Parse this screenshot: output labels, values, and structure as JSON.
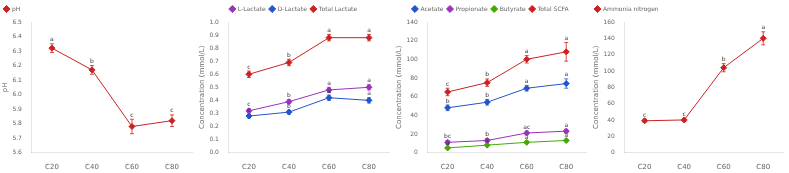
{
  "chart_data": [
    {
      "type": "line",
      "categories": [
        "C20",
        "C40",
        "C60",
        "C80"
      ],
      "series": [
        {
          "name": "pH",
          "color": "#cc2222",
          "values": [
            6.32,
            6.17,
            5.78,
            5.82
          ],
          "errors": [
            0.03,
            0.03,
            0.05,
            0.04
          ],
          "annotations": [
            "a",
            "b",
            "c",
            "c"
          ]
        }
      ],
      "ylabel": "pH",
      "ylim": [
        5.6,
        6.5
      ],
      "yticks": [
        5.6,
        5.7,
        5.8,
        5.9,
        {
          "value": 6.0,
          "label": "6.0"
        },
        6.1,
        6.2,
        6.3,
        6.4,
        6.5
      ],
      "legend": "upper left",
      "grid": false,
      "marker": "diamond"
    },
    {
      "type": "line",
      "categories": [
        "C20",
        "C40",
        "C60",
        "C80"
      ],
      "series": [
        {
          "name": "L-Lactate",
          "color": "#9933bb",
          "values": [
            0.32,
            0.39,
            0.48,
            0.5
          ],
          "errors": [
            0.015,
            0.015,
            0.02,
            0.02
          ],
          "annotations": [
            "c",
            "b",
            "a",
            "a"
          ]
        },
        {
          "name": "D-Lactate",
          "color": "#2255cc",
          "values": [
            0.28,
            0.31,
            0.42,
            0.4
          ],
          "errors": [
            0.015,
            0.015,
            0.02,
            0.02
          ],
          "annotations": [
            "c",
            "b",
            "a",
            "a"
          ]
        },
        {
          "name": "Total Lactate",
          "color": "#cc2222",
          "values": [
            0.6,
            0.69,
            0.88,
            0.88
          ],
          "errors": [
            0.025,
            0.025,
            0.025,
            0.025
          ],
          "annotations": [
            "c",
            "b",
            "a",
            "a"
          ]
        }
      ],
      "ylabel": "Concentration (mmol/L)",
      "ylim": [
        0,
        1.0
      ],
      "yticks": [
        {
          "value": 0,
          "label": "0.0"
        },
        0.1,
        0.2,
        0.3,
        0.4,
        0.5,
        0.6,
        0.7,
        0.8,
        0.9,
        {
          "value": 1.0,
          "label": "1.0"
        }
      ],
      "legend": "upper center",
      "grid": false,
      "marker": "diamond"
    },
    {
      "type": "line",
      "categories": [
        "C20",
        "C40",
        "C60",
        "C80"
      ],
      "series": [
        {
          "name": "Acetate",
          "color": "#2255cc",
          "values": [
            48,
            54,
            69,
            74
          ],
          "errors": [
            3,
            3,
            3,
            5
          ],
          "annotations": [
            "b",
            "b",
            "a",
            "a"
          ]
        },
        {
          "name": "Propionate",
          "color": "#9933bb",
          "values": [
            11,
            13,
            21,
            23
          ],
          "errors": [
            2,
            2,
            2,
            2
          ],
          "annotations": [
            "bc",
            "b",
            "ac",
            "a"
          ]
        },
        {
          "name": "Butyrate",
          "color": "#44aa00",
          "values": [
            5,
            8,
            11,
            13
          ],
          "errors": [
            1,
            1,
            1,
            1
          ],
          "annotations": [
            "a",
            "a",
            "a",
            "a"
          ]
        },
        {
          "name": "Total SCFA",
          "color": "#cc2222",
          "values": [
            65,
            75,
            100,
            108
          ],
          "errors": [
            4,
            4,
            4,
            10
          ],
          "annotations": [
            "c",
            "b",
            "a",
            "a"
          ]
        }
      ],
      "ylabel": "Concentration (mmol/L)",
      "ylim": [
        0,
        140
      ],
      "yticks": [
        0,
        20,
        40,
        60,
        80,
        100,
        120,
        140
      ],
      "legend": "upper center",
      "grid": false,
      "marker": "diamond"
    },
    {
      "type": "line",
      "categories": [
        "C20",
        "C40",
        "C60",
        "C80"
      ],
      "series": [
        {
          "name": "Ammonia nitrogen",
          "color": "#cc2222",
          "values": [
            39,
            40,
            104,
            140
          ],
          "errors": [
            2,
            2,
            5,
            8
          ],
          "annotations": [
            "c",
            "c",
            "b",
            "a"
          ]
        }
      ],
      "ylabel": "Concentration (mmol/L)",
      "ylim": [
        0,
        160
      ],
      "yticks": [
        0,
        20,
        40,
        60,
        80,
        100,
        120,
        140,
        160
      ],
      "legend": "upper left",
      "grid": false,
      "marker": "diamond"
    }
  ]
}
